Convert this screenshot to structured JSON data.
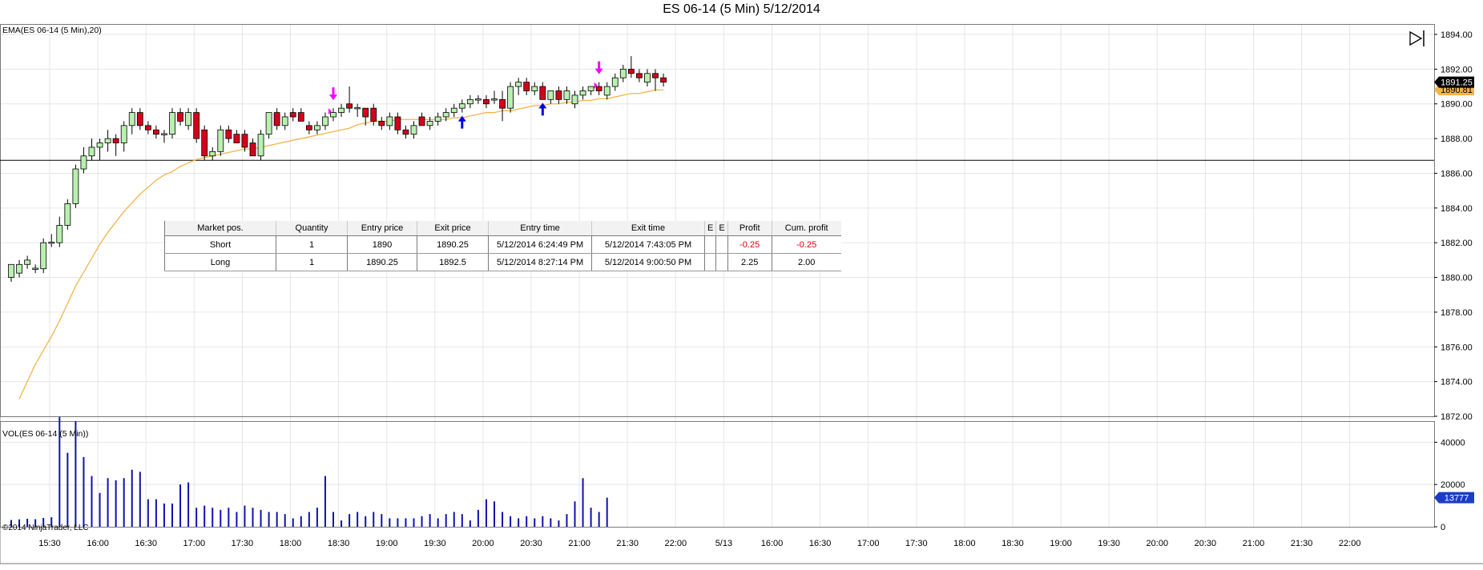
{
  "title": "ES 06-14 (5 Min)  5/12/2014",
  "price_panel_label": "EMA(ES 06-14 (5 Min),20)",
  "volume_panel_label": "VOL(ES 06-14 (5 Min))",
  "copyright": "©2014 NinjaTrader, LLC",
  "last_price_label": "1891.25",
  "ema_price_label": "1890.81",
  "last_volume_label": "13777",
  "colors": {
    "up_candle": "#b9f0b0",
    "down_candle": "#d4001a",
    "ema": "#f2b54a",
    "volume": "#1010b0",
    "sell_marker": "#ff00ff",
    "buy_marker": "#0000e0",
    "grid": "#e6e6e6"
  },
  "chart_data": [
    {
      "type": "candlestick",
      "title": "ES 06-14 (5 Min)  5/12/2014",
      "ylim": [
        1872,
        1894.6
      ],
      "y_ticks": [
        "1894.00",
        "1892.00",
        "1890.00",
        "1888.00",
        "1886.00",
        "1884.00",
        "1882.00",
        "1880.00",
        "1878.00",
        "1876.00",
        "1874.00",
        "1872.00"
      ],
      "x_ticks": [
        "15:30",
        "16:00",
        "16:30",
        "17:00",
        "17:30",
        "18:00",
        "18:30",
        "19:00",
        "19:30",
        "20:00",
        "20:30",
        "21:00",
        "21:30",
        "22:00",
        "5/13",
        "16:00",
        "16:30",
        "17:00",
        "17:30",
        "18:00",
        "18:30",
        "19:00",
        "19:30",
        "20:00",
        "20:30",
        "21:00",
        "21:30",
        "22:00"
      ],
      "horizontal_line": 1886.75,
      "bars": [
        {
          "o": 1880.0,
          "h": 1880.75,
          "l": 1879.75,
          "c": 1880.75
        },
        {
          "o": 1880.25,
          "h": 1881.0,
          "l": 1880.0,
          "c": 1880.75
        },
        {
          "o": 1880.75,
          "h": 1881.25,
          "l": 1880.5,
          "c": 1881.0
        },
        {
          "o": 1880.5,
          "h": 1880.75,
          "l": 1880.25,
          "c": 1880.5
        },
        {
          "o": 1880.5,
          "h": 1882.25,
          "l": 1880.25,
          "c": 1882.0
        },
        {
          "o": 1882.0,
          "h": 1882.5,
          "l": 1881.75,
          "c": 1882.0
        },
        {
          "o": 1882.0,
          "h": 1883.5,
          "l": 1881.75,
          "c": 1883.0
        },
        {
          "o": 1883.0,
          "h": 1884.5,
          "l": 1882.75,
          "c": 1884.25
        },
        {
          "o": 1884.25,
          "h": 1886.5,
          "l": 1884.0,
          "c": 1886.25
        },
        {
          "o": 1886.25,
          "h": 1887.5,
          "l": 1886.0,
          "c": 1887.0
        },
        {
          "o": 1887.0,
          "h": 1888.0,
          "l": 1886.75,
          "c": 1887.5
        },
        {
          "o": 1887.5,
          "h": 1888.0,
          "l": 1886.75,
          "c": 1887.75
        },
        {
          "o": 1887.75,
          "h": 1888.5,
          "l": 1887.25,
          "c": 1888.0
        },
        {
          "o": 1888.0,
          "h": 1888.25,
          "l": 1887.0,
          "c": 1887.75
        },
        {
          "o": 1887.75,
          "h": 1889.0,
          "l": 1887.25,
          "c": 1888.75
        },
        {
          "o": 1888.75,
          "h": 1889.75,
          "l": 1888.25,
          "c": 1889.5
        },
        {
          "o": 1889.5,
          "h": 1889.75,
          "l": 1888.5,
          "c": 1888.75
        },
        {
          "o": 1888.75,
          "h": 1889.0,
          "l": 1888.25,
          "c": 1888.5
        },
        {
          "o": 1888.5,
          "h": 1888.75,
          "l": 1888.0,
          "c": 1888.25
        },
        {
          "o": 1888.25,
          "h": 1888.5,
          "l": 1887.75,
          "c": 1888.25
        },
        {
          "o": 1888.25,
          "h": 1889.75,
          "l": 1888.0,
          "c": 1889.5
        },
        {
          "o": 1889.5,
          "h": 1889.75,
          "l": 1888.75,
          "c": 1889.0
        },
        {
          "o": 1888.75,
          "h": 1889.75,
          "l": 1888.5,
          "c": 1889.5
        },
        {
          "o": 1889.5,
          "h": 1889.75,
          "l": 1887.75,
          "c": 1888.0
        },
        {
          "o": 1888.5,
          "h": 1888.75,
          "l": 1886.75,
          "c": 1887.0
        },
        {
          "o": 1887.0,
          "h": 1887.5,
          "l": 1886.75,
          "c": 1887.25
        },
        {
          "o": 1887.25,
          "h": 1888.75,
          "l": 1887.0,
          "c": 1888.5
        },
        {
          "o": 1888.5,
          "h": 1888.75,
          "l": 1887.75,
          "c": 1888.0
        },
        {
          "o": 1888.25,
          "h": 1888.5,
          "l": 1887.75,
          "c": 1887.75
        },
        {
          "o": 1888.25,
          "h": 1888.5,
          "l": 1887.25,
          "c": 1887.5
        },
        {
          "o": 1887.75,
          "h": 1888.0,
          "l": 1887.0,
          "c": 1887.0
        },
        {
          "o": 1887.0,
          "h": 1888.5,
          "l": 1886.75,
          "c": 1888.25
        },
        {
          "o": 1888.25,
          "h": 1889.5,
          "l": 1888.0,
          "c": 1889.5
        },
        {
          "o": 1889.5,
          "h": 1889.75,
          "l": 1888.5,
          "c": 1888.75
        },
        {
          "o": 1888.75,
          "h": 1889.5,
          "l": 1888.5,
          "c": 1889.25
        },
        {
          "o": 1889.5,
          "h": 1889.75,
          "l": 1889.0,
          "c": 1889.25
        },
        {
          "o": 1889.5,
          "h": 1889.75,
          "l": 1889.0,
          "c": 1889.0
        },
        {
          "o": 1888.75,
          "h": 1889.0,
          "l": 1888.25,
          "c": 1888.5
        },
        {
          "o": 1888.5,
          "h": 1889.0,
          "l": 1888.25,
          "c": 1888.75
        },
        {
          "o": 1888.75,
          "h": 1889.5,
          "l": 1888.5,
          "c": 1889.25
        },
        {
          "o": 1889.25,
          "h": 1889.75,
          "l": 1889.0,
          "c": 1889.5
        },
        {
          "o": 1889.5,
          "h": 1890.0,
          "l": 1889.25,
          "c": 1889.75
        },
        {
          "o": 1890.0,
          "h": 1891.0,
          "l": 1889.5,
          "c": 1889.75
        },
        {
          "o": 1889.75,
          "h": 1890.0,
          "l": 1889.25,
          "c": 1889.75
        },
        {
          "o": 1889.75,
          "h": 1889.75,
          "l": 1888.75,
          "c": 1889.25
        },
        {
          "o": 1889.75,
          "h": 1890.0,
          "l": 1888.75,
          "c": 1889.0
        },
        {
          "o": 1889.0,
          "h": 1889.25,
          "l": 1888.5,
          "c": 1888.75
        },
        {
          "o": 1888.75,
          "h": 1889.5,
          "l": 1888.5,
          "c": 1889.25
        },
        {
          "o": 1889.25,
          "h": 1889.5,
          "l": 1888.25,
          "c": 1888.5
        },
        {
          "o": 1888.5,
          "h": 1888.75,
          "l": 1888.0,
          "c": 1888.25
        },
        {
          "o": 1888.25,
          "h": 1889.0,
          "l": 1888.0,
          "c": 1888.75
        },
        {
          "o": 1889.25,
          "h": 1889.5,
          "l": 1888.75,
          "c": 1888.75
        },
        {
          "o": 1888.75,
          "h": 1889.25,
          "l": 1888.5,
          "c": 1889.0
        },
        {
          "o": 1889.0,
          "h": 1889.5,
          "l": 1888.75,
          "c": 1889.25
        },
        {
          "o": 1889.25,
          "h": 1889.75,
          "l": 1889.0,
          "c": 1889.5
        },
        {
          "o": 1889.5,
          "h": 1890.0,
          "l": 1889.25,
          "c": 1889.75
        },
        {
          "o": 1889.75,
          "h": 1890.25,
          "l": 1889.5,
          "c": 1890.0
        },
        {
          "o": 1890.0,
          "h": 1890.5,
          "l": 1889.75,
          "c": 1890.25
        },
        {
          "o": 1890.25,
          "h": 1890.5,
          "l": 1890.0,
          "c": 1890.25
        },
        {
          "o": 1890.25,
          "h": 1890.5,
          "l": 1889.75,
          "c": 1890.0
        },
        {
          "o": 1890.25,
          "h": 1890.75,
          "l": 1890.0,
          "c": 1890.25
        },
        {
          "o": 1890.25,
          "h": 1890.75,
          "l": 1889.0,
          "c": 1889.75
        },
        {
          "o": 1889.75,
          "h": 1891.25,
          "l": 1889.5,
          "c": 1891.0
        },
        {
          "o": 1891.0,
          "h": 1891.5,
          "l": 1890.5,
          "c": 1891.25
        },
        {
          "o": 1891.25,
          "h": 1891.5,
          "l": 1890.5,
          "c": 1890.75
        },
        {
          "o": 1890.75,
          "h": 1891.25,
          "l": 1890.5,
          "c": 1891.0
        },
        {
          "o": 1891.0,
          "h": 1891.25,
          "l": 1890.25,
          "c": 1890.25
        },
        {
          "o": 1890.25,
          "h": 1890.75,
          "l": 1890.0,
          "c": 1890.75
        },
        {
          "o": 1890.75,
          "h": 1891.0,
          "l": 1890.0,
          "c": 1890.25
        },
        {
          "o": 1890.25,
          "h": 1891.0,
          "l": 1890.0,
          "c": 1890.75
        },
        {
          "o": 1890.0,
          "h": 1890.75,
          "l": 1889.75,
          "c": 1890.5
        },
        {
          "o": 1890.5,
          "h": 1891.0,
          "l": 1890.25,
          "c": 1890.75
        },
        {
          "o": 1890.75,
          "h": 1891.0,
          "l": 1890.5,
          "c": 1891.0
        },
        {
          "o": 1891.0,
          "h": 1891.25,
          "l": 1890.5,
          "c": 1890.75
        },
        {
          "o": 1890.5,
          "h": 1891.25,
          "l": 1890.25,
          "c": 1891.0
        },
        {
          "o": 1891.0,
          "h": 1891.75,
          "l": 1890.75,
          "c": 1891.5
        },
        {
          "o": 1891.5,
          "h": 1892.25,
          "l": 1891.25,
          "c": 1892.0
        },
        {
          "o": 1892.0,
          "h": 1892.75,
          "l": 1891.5,
          "c": 1891.75
        },
        {
          "o": 1891.75,
          "h": 1892.0,
          "l": 1891.25,
          "c": 1891.5
        },
        {
          "o": 1891.25,
          "h": 1892.0,
          "l": 1891.0,
          "c": 1891.75
        },
        {
          "o": 1891.75,
          "h": 1892.0,
          "l": 1890.75,
          "c": 1891.5
        },
        {
          "o": 1891.5,
          "h": 1891.75,
          "l": 1891.0,
          "c": 1891.25
        }
      ],
      "ema_period": 20,
      "ema_values": [
        1873.0,
        1874.0,
        1875.0,
        1875.8,
        1876.6,
        1877.5,
        1878.5,
        1879.5,
        1880.3,
        1881.1,
        1881.9,
        1882.6,
        1883.2,
        1883.8,
        1884.3,
        1884.8,
        1885.2,
        1885.6,
        1885.9,
        1886.1,
        1886.4,
        1886.6,
        1886.8,
        1886.9,
        1887.0,
        1887.1,
        1887.2,
        1887.3,
        1887.4,
        1887.4,
        1887.5,
        1887.6,
        1887.7,
        1887.8,
        1887.9,
        1888.0,
        1888.1,
        1888.2,
        1888.3,
        1888.4,
        1888.5,
        1888.6,
        1888.8,
        1888.9,
        1889.0,
        1889.0,
        1889.0,
        1889.1,
        1889.1,
        1889.1,
        1889.1,
        1889.1,
        1889.1,
        1889.1,
        1889.2,
        1889.2,
        1889.3,
        1889.4,
        1889.5,
        1889.5,
        1889.6,
        1889.6,
        1889.7,
        1889.8,
        1889.9,
        1889.9,
        1890.0,
        1890.0,
        1890.1,
        1890.1,
        1890.2,
        1890.2,
        1890.3,
        1890.3,
        1890.4,
        1890.5,
        1890.6,
        1890.6,
        1890.7,
        1890.8,
        1890.8
      ],
      "markers": [
        {
          "type": "sell",
          "bar": 40
        },
        {
          "type": "exit",
          "bar": 40
        },
        {
          "type": "buy",
          "bar": 56
        },
        {
          "type": "buy",
          "bar": 66
        },
        {
          "type": "sell",
          "bar": 73
        },
        {
          "type": "exit",
          "bar": 73
        }
      ]
    },
    {
      "type": "bar",
      "title": "VOL(ES 06-14 (5 Min))",
      "ylim": [
        0,
        50000
      ],
      "y_ticks": [
        "40000",
        "20000",
        "0"
      ],
      "values": [
        3200,
        3500,
        3800,
        3600,
        4200,
        4500,
        52000,
        35000,
        50000,
        33000,
        24000,
        16000,
        23000,
        22000,
        23000,
        27000,
        26000,
        13000,
        13000,
        11000,
        11000,
        20000,
        21000,
        9000,
        10000,
        9000,
        8000,
        9000,
        7000,
        10000,
        9000,
        8000,
        7000,
        7000,
        6000,
        4000,
        5000,
        7000,
        9000,
        24000,
        7000,
        3000,
        6000,
        7000,
        5000,
        7000,
        6000,
        4000,
        4000,
        4000,
        4000,
        5000,
        6000,
        4000,
        6000,
        7000,
        6000,
        3000,
        8000,
        13000,
        12000,
        7000,
        5000,
        4000,
        5000,
        4000,
        5000,
        4000,
        3000,
        6000,
        12000,
        23000,
        9000,
        7000,
        13777
      ]
    }
  ],
  "trades_table": {
    "headers": [
      "Market pos.",
      "Quantity",
      "Entry price",
      "Exit price",
      "Entry time",
      "Exit time",
      "E",
      "E",
      "Profit",
      "Cum. profit"
    ],
    "rows": [
      [
        "Short",
        "1",
        "1890",
        "1890.25",
        "5/12/2014 6:24:49 PM",
        "5/12/2014 7:43:05 PM",
        "",
        "",
        "-0.25",
        "-0.25"
      ],
      [
        "Long",
        "1",
        "1890.25",
        "1892.5",
        "5/12/2014 8:27:14 PM",
        "5/12/2014 9:00:50 PM",
        "",
        "",
        "2.25",
        "2.00"
      ]
    ]
  }
}
